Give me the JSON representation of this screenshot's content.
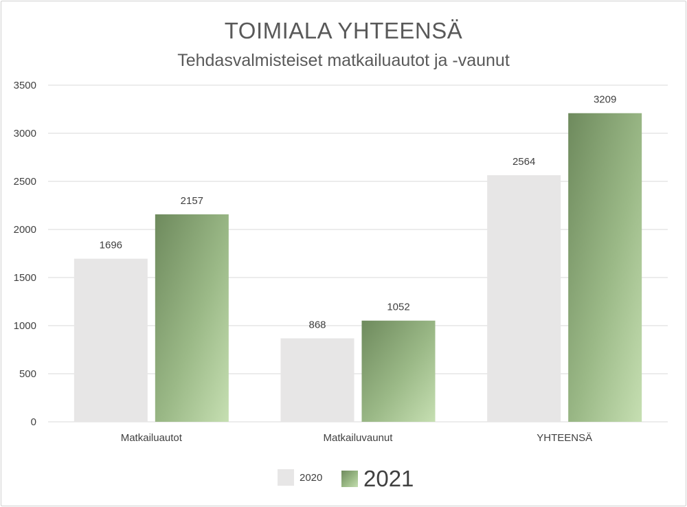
{
  "chart_data": {
    "type": "bar",
    "title": "TOIMIALA YHTEENSÄ",
    "subtitle": "Tehdasvalmisteiset matkailuautot ja -vaunut",
    "categories": [
      "Matkailuautot",
      "Matkailuvaunut",
      "YHTEENSÄ"
    ],
    "series": [
      {
        "name": "2020",
        "values": [
          1696,
          868,
          2564
        ],
        "color": "#e7e6e6"
      },
      {
        "name": "2021",
        "values": [
          2157,
          1052,
          3209
        ],
        "color": "#8fae7b"
      }
    ],
    "y_ticks": [
      "0",
      "500",
      "1000",
      "1500",
      "2000",
      "2500",
      "3000",
      "3500"
    ],
    "ylim": [
      0,
      3500
    ],
    "grid": true,
    "legend_position": "bottom"
  }
}
